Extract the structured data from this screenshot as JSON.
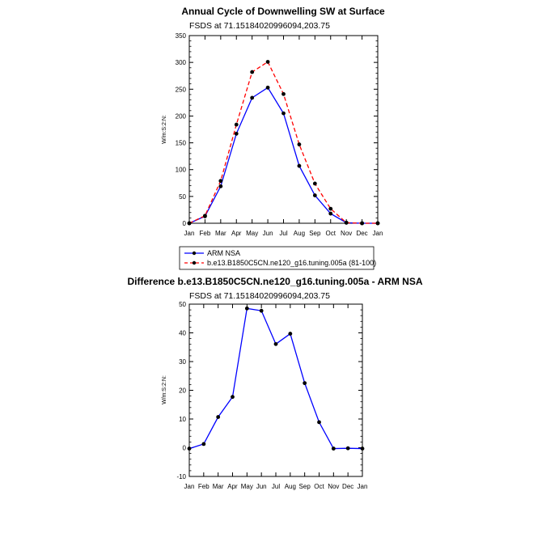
{
  "chart_data": [
    {
      "type": "line",
      "title": "Annual Cycle of Downwelling SW at Surface",
      "subtitle": "FSDS at 71.15184020996094,203.75",
      "ylabel": "W/m:S:2:N:",
      "xlabel": "",
      "ylim": [
        0,
        350
      ],
      "yticks": [
        0,
        50,
        100,
        150,
        200,
        250,
        300,
        350
      ],
      "categories": [
        "Jan",
        "Feb",
        "Mar",
        "Apr",
        "May",
        "Jun",
        "Jul",
        "Aug",
        "Sep",
        "Oct",
        "Nov",
        "Dec",
        "Jan"
      ],
      "series": [
        {
          "name": "ARM NSA",
          "color": "#0000ff",
          "dash": "solid",
          "values": [
            0,
            13,
            69,
            167,
            234,
            253,
            205,
            107,
            52,
            18,
            1,
            0,
            0
          ]
        },
        {
          "name": "b.e13.B1850C5CN.ne120_g16.tuning.005a (81-100)",
          "color": "#ff0000",
          "dash": "dashed",
          "values": [
            0,
            14,
            79,
            184,
            282,
            301,
            241,
            147,
            74,
            27,
            1,
            0,
            0
          ]
        }
      ],
      "legend": "below"
    },
    {
      "type": "line",
      "title": "Difference b.e13.B1850C5CN.ne120_g16.tuning.005a - ARM NSA",
      "subtitle": "FSDS at 71.15184020996094,203.75",
      "ylabel": "W/m:S:2:N:",
      "xlabel": "",
      "ylim": [
        -10,
        50
      ],
      "yticks": [
        -10,
        0,
        10,
        20,
        30,
        40,
        50
      ],
      "categories": [
        "Jan",
        "Feb",
        "Mar",
        "Apr",
        "May",
        "Jun",
        "Jul",
        "Aug",
        "Sep",
        "Oct",
        "Nov",
        "Dec",
        "Jan"
      ],
      "series": [
        {
          "name": "Difference",
          "color": "#0000ff",
          "dash": "solid",
          "values": [
            -0.3,
            1.3,
            10.7,
            17.7,
            48.5,
            47.7,
            36.1,
            39.7,
            22.5,
            8.9,
            -0.3,
            -0.2,
            -0.3
          ]
        }
      ]
    }
  ]
}
